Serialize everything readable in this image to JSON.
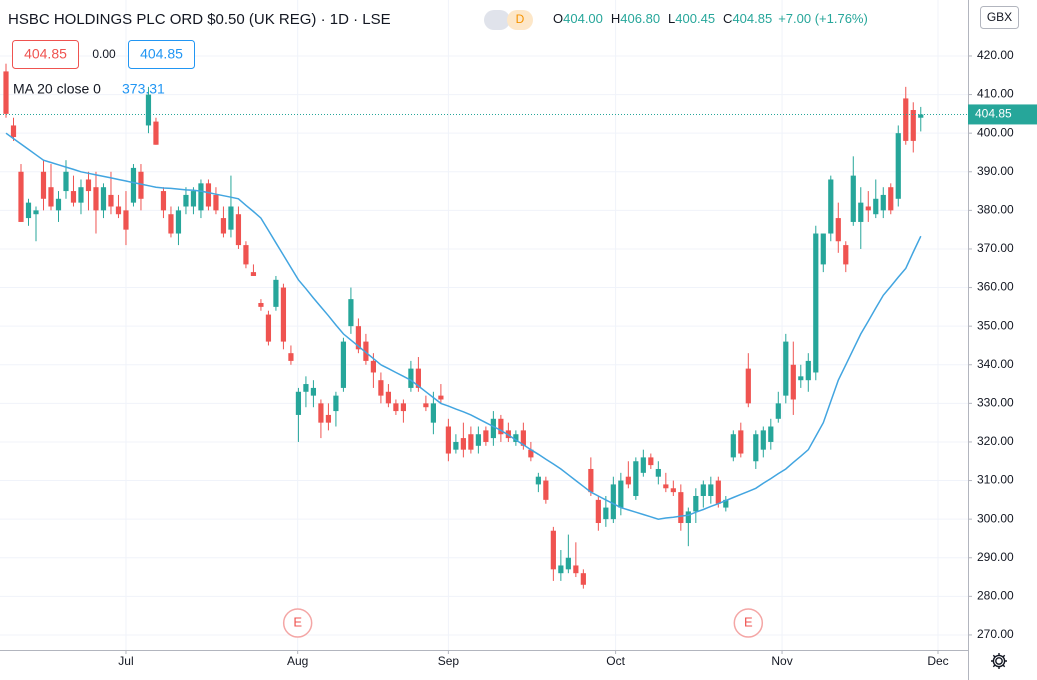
{
  "chart_data": {
    "type": "candlestick",
    "title": "HSBC HOLDINGS PLC ORD $0.50 (UK REG) · 1D · LSE",
    "badge": "D",
    "ohlc_header": [
      {
        "key": "O",
        "value": "404.00"
      },
      {
        "key": "H",
        "value": "406.80"
      },
      {
        "key": "L",
        "value": "400.45"
      },
      {
        "key": "C",
        "value": "404.85"
      }
    ],
    "change": "+7.00 (+1.76%)",
    "price_boxes": [
      "404.85",
      "0.00",
      "404.85"
    ],
    "currency": "GBX",
    "up_color": "#26a69a",
    "down_color": "#ef5350",
    "candles": {
      "open": [
        416,
        402,
        390,
        378,
        379,
        390,
        386,
        380,
        385,
        385,
        382,
        388,
        386,
        380,
        384,
        381,
        380,
        382,
        390,
        402,
        403,
        385,
        379,
        374,
        381,
        381,
        380,
        387,
        384,
        378,
        375,
        379,
        371,
        364,
        356,
        353,
        355,
        360,
        343,
        327,
        333,
        332,
        330,
        327,
        328,
        334,
        350,
        350,
        346,
        341,
        336,
        333,
        330,
        330,
        334,
        339,
        330,
        325,
        332,
        324,
        318,
        321,
        322,
        319,
        323,
        321,
        326,
        323,
        320,
        323,
        318,
        309,
        310,
        297,
        286,
        287,
        288,
        286,
        313,
        305,
        300,
        300,
        303,
        311,
        306,
        312,
        316,
        311,
        309,
        308,
        307,
        299,
        302,
        306,
        306,
        310,
        303,
        316,
        323,
        339,
        315,
        318,
        320,
        326,
        332,
        340,
        336,
        336,
        338,
        366,
        374,
        378,
        371,
        377,
        377,
        381,
        379,
        380,
        386,
        383,
        409,
        406,
        404.0
      ],
      "high": [
        418,
        404,
        392,
        383,
        381,
        393,
        392,
        385,
        393,
        389,
        388,
        390,
        390,
        387,
        390,
        384,
        385,
        392,
        392,
        412,
        404,
        386,
        381,
        381,
        386,
        386,
        388,
        388,
        386,
        381,
        389,
        381,
        372,
        366,
        357,
        354,
        363,
        361,
        345,
        334,
        337,
        336,
        331,
        330,
        333,
        347,
        360,
        352,
        348,
        343,
        338,
        335,
        331,
        331,
        341,
        342,
        332,
        333,
        335,
        326,
        322,
        325,
        324,
        324,
        324,
        328,
        327,
        325,
        323,
        325,
        320,
        312,
        311,
        298,
        292,
        296,
        294,
        287,
        316,
        306,
        306,
        311,
        312,
        315,
        316,
        318,
        317,
        315,
        312,
        310,
        309,
        303,
        308,
        310,
        311,
        311,
        306,
        323,
        325,
        343,
        323,
        324,
        326,
        333,
        348,
        346,
        340,
        343,
        376,
        374,
        389,
        382,
        372,
        394,
        386,
        385,
        388,
        386,
        387,
        402,
        412,
        408,
        406.8
      ],
      "low": [
        404,
        398,
        377,
        376,
        372,
        380,
        380,
        377,
        383,
        381,
        379,
        380,
        374,
        378,
        379,
        378,
        371,
        381,
        380,
        400,
        397,
        378,
        373,
        371,
        379,
        379,
        378,
        380,
        379,
        373,
        373,
        370,
        365,
        363,
        354,
        345,
        354,
        344,
        340,
        320,
        329,
        329,
        321,
        323,
        324,
        333,
        348,
        343,
        340,
        334,
        330,
        329,
        327,
        325,
        333,
        333,
        328,
        322,
        330,
        315,
        317,
        316,
        317,
        317,
        319,
        319,
        320,
        320,
        319,
        318,
        315,
        307,
        304,
        284,
        284,
        286,
        285,
        282,
        306,
        297,
        298,
        299,
        301,
        308,
        305,
        311,
        313,
        309,
        307,
        306,
        297,
        293,
        299,
        303,
        304,
        303,
        302,
        315,
        316,
        329,
        313,
        316,
        318,
        325,
        330,
        327,
        334,
        333,
        336,
        364,
        372,
        369,
        364,
        376,
        370,
        377,
        378,
        378,
        379,
        381,
        397,
        395,
        400.45
      ],
      "close": [
        405,
        399,
        377,
        382,
        380,
        383,
        381,
        383,
        390,
        382,
        386,
        385,
        380,
        386,
        381,
        379,
        375,
        391,
        383,
        410,
        397,
        380,
        374,
        380,
        384,
        385,
        387,
        381,
        380,
        374,
        381,
        371,
        366,
        363,
        355,
        346,
        362,
        346,
        341,
        333,
        335,
        334,
        325,
        325,
        332,
        346,
        357,
        344,
        341,
        338,
        332,
        330,
        328,
        328,
        339,
        334,
        329,
        330,
        331,
        317,
        320,
        318,
        318,
        322,
        320,
        326,
        322,
        321,
        322,
        319,
        316,
        311,
        305,
        287,
        288,
        290,
        286,
        283,
        307,
        299,
        303,
        309,
        310,
        309,
        315,
        316,
        314,
        313,
        308,
        307,
        299,
        302,
        306,
        309,
        309,
        304,
        305,
        322,
        317,
        330,
        322,
        323,
        324,
        330,
        346,
        331,
        337,
        341,
        374,
        374,
        388,
        372,
        366,
        389,
        382,
        380,
        383,
        384,
        380,
        400,
        398,
        398,
        404.85
      ]
    },
    "series": [
      {
        "name": "MA 20 close 0",
        "color": "#42a5e0",
        "value_label": "373.31",
        "values": [
          400,
          398.6,
          397.2,
          395.8,
          394.4,
          393,
          392.4,
          391.8,
          391.2,
          390.6,
          390,
          389.6,
          389.2,
          388.8,
          388.4,
          388,
          387.6,
          387.2,
          386.8,
          386.4,
          386,
          385.8,
          385.7,
          385.5,
          385.3,
          385.2,
          385,
          384.6,
          384.2,
          383.8,
          383.4,
          383,
          381.3,
          379.7,
          378,
          374.8,
          371.6,
          368.4,
          365.2,
          362,
          359.7,
          357.3,
          355,
          352.7,
          350.3,
          348,
          346.4,
          344.8,
          343.2,
          341.6,
          340,
          339,
          338,
          337,
          336,
          334.5,
          333,
          331.5,
          330,
          329.3,
          328.5,
          327.8,
          327,
          326,
          325,
          324,
          323,
          321.8,
          320.5,
          319.3,
          318,
          316.8,
          315.5,
          314.3,
          313,
          311.5,
          310,
          308.5,
          307,
          306,
          305,
          304,
          303,
          302.4,
          301.8,
          301.2,
          300.6,
          300,
          300.3,
          300.5,
          300.8,
          301,
          301.8,
          302.5,
          303.3,
          304,
          304.8,
          305.6,
          306.4,
          307.2,
          308,
          309.3,
          310.5,
          311.8,
          313,
          314.7,
          316.3,
          318,
          321.5,
          325,
          330.5,
          336,
          340,
          344,
          348,
          351.3,
          354.7,
          358,
          360.3,
          362.7,
          365,
          369.2,
          373.31
        ]
      }
    ],
    "last_price": {
      "value": 404.85,
      "label": "404.85"
    },
    "events": [
      {
        "label": "E",
        "x": 38.9
      },
      {
        "label": "E",
        "x": 99
      }
    ],
    "xlim": [
      -0.8,
      128.3
    ],
    "xticks": [
      {
        "value": 16,
        "label": "Jul"
      },
      {
        "value": 38.9,
        "label": "Aug"
      },
      {
        "value": 59,
        "label": "Sep"
      },
      {
        "value": 81.3,
        "label": "Oct"
      },
      {
        "value": 103.5,
        "label": "Nov"
      },
      {
        "value": 124.3,
        "label": "Dec"
      }
    ],
    "ylim": [
      266.1,
      434.5
    ],
    "yticks": [
      {
        "value": 270,
        "label": "270.00"
      },
      {
        "value": 280,
        "label": "280.00"
      },
      {
        "value": 290,
        "label": "290.00"
      },
      {
        "value": 300,
        "label": "300.00"
      },
      {
        "value": 310,
        "label": "310.00"
      },
      {
        "value": 320,
        "label": "320.00"
      },
      {
        "value": 330,
        "label": "330.00"
      },
      {
        "value": 340,
        "label": "340.00"
      },
      {
        "value": 350,
        "label": "350.00"
      },
      {
        "value": 360,
        "label": "360.00"
      },
      {
        "value": 370,
        "label": "370.00"
      },
      {
        "value": 380,
        "label": "380.00"
      },
      {
        "value": 390,
        "label": "390.00"
      },
      {
        "value": 400,
        "label": "400.00"
      },
      {
        "value": 410,
        "label": "410.00"
      },
      {
        "value": 420,
        "label": "420.00"
      }
    ],
    "grid": true
  }
}
